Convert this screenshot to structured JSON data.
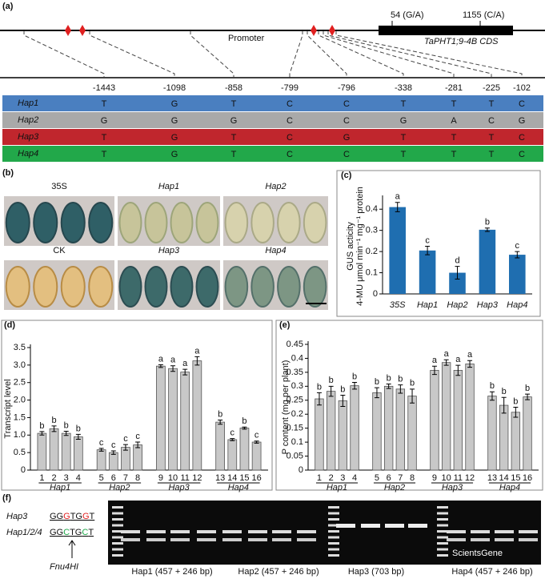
{
  "panel_a": {
    "label": "(a)",
    "snp_labels": [
      "54 (G/A)",
      "1155 (C/A)"
    ],
    "promoter": "Promoter",
    "cds": "TaPHT1;9-4B CDS",
    "positions": [
      "-1443",
      "-1098",
      "-858",
      "-799",
      "-796",
      "-338",
      "-281",
      "-225",
      "-102"
    ],
    "haplotypes": [
      {
        "name": "Hap1",
        "color": "#4a7fc0",
        "alleles": [
          "T",
          "G",
          "T",
          "C",
          "C",
          "T",
          "T",
          "T",
          "C"
        ]
      },
      {
        "name": "Hap2",
        "color": "#a9a9a9",
        "alleles": [
          "G",
          "G",
          "G",
          "C",
          "C",
          "G",
          "A",
          "C",
          "G"
        ]
      },
      {
        "name": "Hap3",
        "color": "#c0262d",
        "alleles": [
          "T",
          "G",
          "T",
          "C",
          "G",
          "T",
          "T",
          "T",
          "C"
        ]
      },
      {
        "name": "Hap4",
        "color": "#22a84a",
        "alleles": [
          "T",
          "G",
          "T",
          "C",
          "C",
          "T",
          "T",
          "T",
          "C"
        ]
      }
    ]
  },
  "panel_b": {
    "label": "(b)",
    "images": [
      "35S",
      "Hap1",
      "Hap2",
      "CK",
      "Hap3",
      "Hap4"
    ]
  },
  "chart_data": [
    {
      "type": "bar",
      "label": "(c)",
      "ylabel": "GUS acticity",
      "ylabel2": "4-MU μmol min⁻¹ mg⁻¹ protein",
      "categories": [
        "35S",
        "Hap1",
        "Hap2",
        "Hap3",
        "Hap4"
      ],
      "values": [
        0.41,
        0.205,
        0.1,
        0.303,
        0.185
      ],
      "errors": [
        0.022,
        0.02,
        0.03,
        0.008,
        0.015
      ],
      "letters": [
        "a",
        "c",
        "d",
        "b",
        "c"
      ],
      "color": "#1f6eb0",
      "ylim": [
        0,
        0.45
      ],
      "yticks": [
        0,
        0.1,
        0.2,
        0.3,
        0.4
      ]
    },
    {
      "type": "bar",
      "label": "(d)",
      "ylabel": "Transcript level",
      "categories": [
        "1",
        "2",
        "3",
        "4",
        "5",
        "6",
        "7",
        "8",
        "9",
        "10",
        "11",
        "12",
        "13",
        "14",
        "15",
        "16"
      ],
      "groups": [
        "Hap1",
        "Hap2",
        "Hap3",
        "Hap4"
      ],
      "values": [
        1.05,
        1.18,
        1.05,
        0.95,
        0.58,
        0.5,
        0.65,
        0.72,
        2.97,
        2.9,
        2.8,
        3.12,
        1.37,
        0.87,
        1.2,
        0.8
      ],
      "errors": [
        0.05,
        0.08,
        0.06,
        0.07,
        0.04,
        0.05,
        0.08,
        0.08,
        0.04,
        0.08,
        0.08,
        0.12,
        0.06,
        0.03,
        0.03,
        0.03
      ],
      "letters": [
        "b",
        "b",
        "b",
        "b",
        "c",
        "c",
        "c",
        "c",
        "a",
        "a",
        "a",
        "a",
        "b",
        "c",
        "b",
        "c"
      ],
      "color": "#c8c8c8",
      "ylim": [
        0,
        3.5
      ],
      "yticks": [
        0,
        0.5,
        {
          "value": 1,
          "label": "1.0"
        },
        1.5,
        {
          "value": 2,
          "label": "2.0"
        },
        2.5,
        {
          "value": 3,
          "label": "3.0"
        },
        3.5
      ]
    },
    {
      "type": "bar",
      "label": "(e)",
      "ylabel": "P content (mg per plant)",
      "categories": [
        "1",
        "2",
        "3",
        "4",
        "5",
        "6",
        "7",
        "8",
        "9",
        "10",
        "11",
        "12",
        "13",
        "14",
        "15",
        "16"
      ],
      "groups": [
        "Hap1",
        "Hap2",
        "Hap3",
        "Hap4"
      ],
      "values": [
        0.255,
        0.282,
        0.248,
        0.302,
        0.277,
        0.3,
        0.29,
        0.265,
        0.357,
        0.385,
        0.357,
        0.38,
        0.265,
        0.232,
        0.207,
        0.262
      ],
      "errors": [
        0.022,
        0.018,
        0.02,
        0.012,
        0.018,
        0.008,
        0.015,
        0.025,
        0.015,
        0.01,
        0.018,
        0.012,
        0.015,
        0.028,
        0.018,
        0.01
      ],
      "letters": [
        "b",
        "b",
        "b",
        "b",
        "b",
        "b",
        "b",
        "b",
        "a",
        "a",
        "a",
        "a",
        "b",
        "b",
        "b",
        "b"
      ],
      "color": "#c8c8c8",
      "ylim": [
        0,
        0.45
      ],
      "yticks": [
        0,
        0.05,
        0.1,
        0.15,
        0.2,
        0.25,
        0.3,
        0.35,
        0.4,
        0.45
      ]
    }
  ],
  "panel_f": {
    "label": "(f)",
    "seq_rows": [
      {
        "name": "Hap3",
        "parts": [
          "GG",
          "G",
          "TG",
          "G",
          "T"
        ],
        "highlight_color": "#e02020"
      },
      {
        "name": "Hap1/2/4",
        "parts": [
          "GG",
          "C",
          "TG",
          "C",
          "T"
        ],
        "highlight_color": "#1fa84a"
      }
    ],
    "enzyme": "Fnu4HI",
    "lanes": [
      "Hap1 (457 + 246 bp)",
      "Hap2 (457 + 246 bp)",
      "Hap3 (703 bp)",
      "Hap4 (457 + 246 bp)"
    ],
    "watermark": "ScientsGene"
  }
}
